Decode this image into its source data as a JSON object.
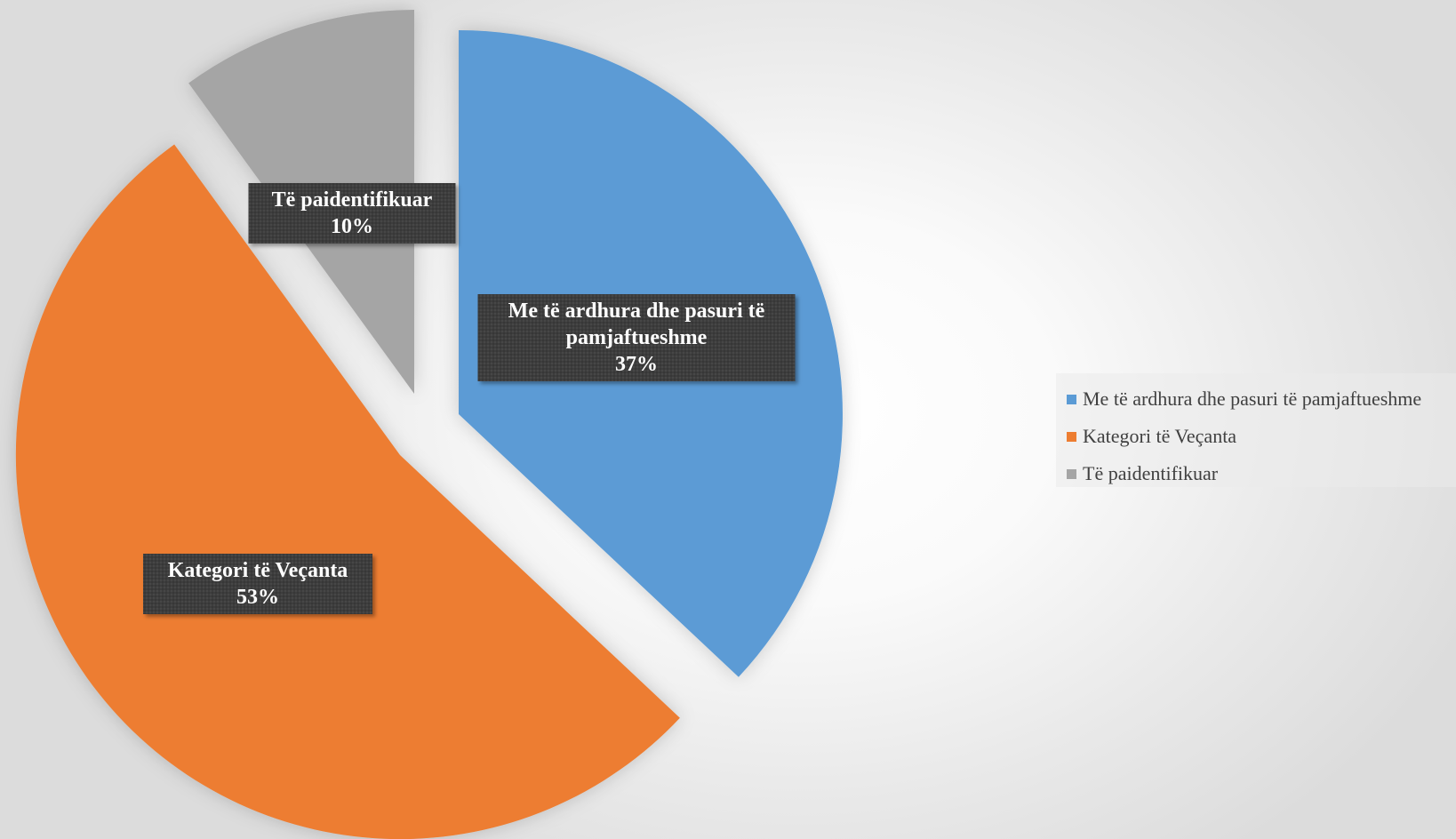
{
  "chart_data": {
    "type": "pie",
    "title": "",
    "exploded": true,
    "start_angle_deg": 0,
    "direction": "clockwise",
    "slices": [
      {
        "label": "Me të ardhura dhe pasuri të pamjaftueshme",
        "value": 37,
        "value_label": "37%",
        "color": "#5b9bd5",
        "label_lines": [
          "Me të ardhura dhe pasuri të",
          "pamjaftueshme"
        ]
      },
      {
        "label": "Kategori të Veçanta",
        "value": 53,
        "value_label": "53%",
        "color": "#ed7d31",
        "label_lines": [
          "Kategori të Veçanta"
        ]
      },
      {
        "label": "Të paidentifikuar",
        "value": 10,
        "value_label": "10%",
        "color": "#a5a5a5",
        "label_lines": [
          "Të paidentifikuar"
        ]
      }
    ],
    "legend": {
      "position": "right",
      "entries": [
        "Me të ardhura dhe pasuri të pamjaftueshme",
        "Kategori të Veçanta",
        "Të paidentifikuar"
      ]
    }
  }
}
